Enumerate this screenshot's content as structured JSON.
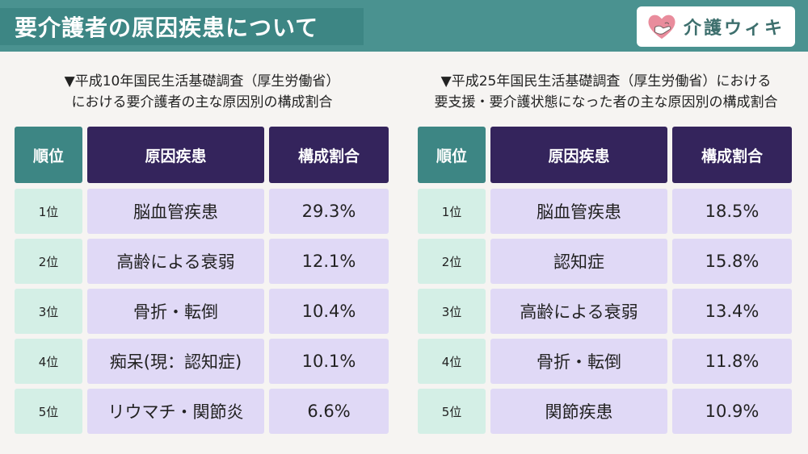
{
  "page": {
    "title": "要介護者の原因疾患について",
    "logo_text": "介護ウィキ",
    "logo_icon": "heart-hands-icon",
    "colors": {
      "header_teal": "#4a9290",
      "title_teal": "#3d8684",
      "header_purple": "#34245c",
      "rank_cell": "#d4efe6",
      "value_cell": "#e0d9f6"
    }
  },
  "left": {
    "caption_line1": "▼平成10年国民生活基礎調査（厚生労働省）",
    "caption_line2": "における要介護者の主な原因別の構成割合",
    "headers": {
      "rank": "順位",
      "cause": "原因疾患",
      "pct": "構成割合"
    },
    "rows": [
      {
        "rank": "1位",
        "cause": "脳血管疾患",
        "pct": "29.3%"
      },
      {
        "rank": "2位",
        "cause": "高齢による衰弱",
        "pct": "12.1%"
      },
      {
        "rank": "3位",
        "cause": "骨折・転倒",
        "pct": "10.4%"
      },
      {
        "rank": "4位",
        "cause": "痴呆(現：認知症)",
        "pct": "10.1%"
      },
      {
        "rank": "5位",
        "cause": "リウマチ・関節炎",
        "pct": "6.6%"
      }
    ]
  },
  "right": {
    "caption_line1": "▼平成25年国民生活基礎調査（厚生労働省）における",
    "caption_line2": "要支援・要介護状態になった者の主な原因別の構成割合",
    "headers": {
      "rank": "順位",
      "cause": "原因疾患",
      "pct": "構成割合"
    },
    "rows": [
      {
        "rank": "1位",
        "cause": "脳血管疾患",
        "pct": "18.5%"
      },
      {
        "rank": "2位",
        "cause": "認知症",
        "pct": "15.8%"
      },
      {
        "rank": "3位",
        "cause": "高齢による衰弱",
        "pct": "13.4%"
      },
      {
        "rank": "4位",
        "cause": "骨折・転倒",
        "pct": "11.8%"
      },
      {
        "rank": "5位",
        "cause": "関節疾患",
        "pct": "10.9%"
      }
    ]
  }
}
